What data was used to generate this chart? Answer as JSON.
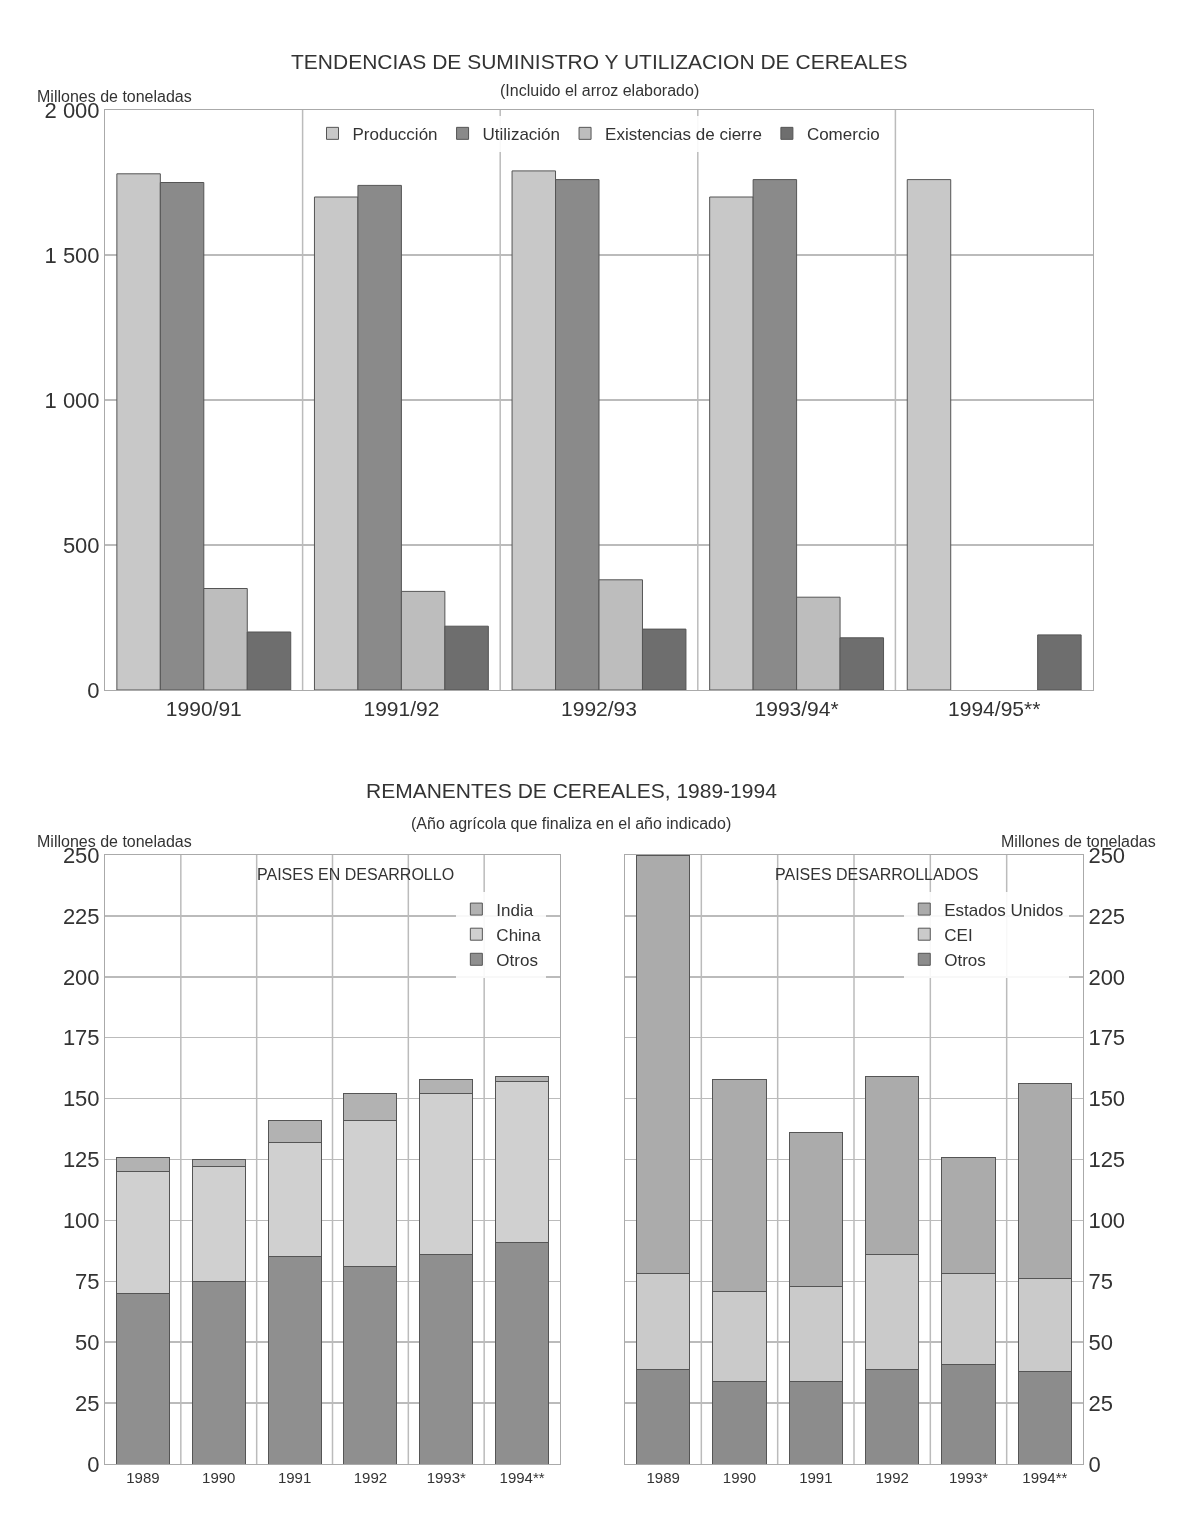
{
  "chart_data": [
    {
      "type": "bar",
      "title": "TENDENCIAS DE SUMINISTRO Y UTILIZACION DE CEREALES",
      "subtitle": "(Incluido el arroz elaborado)",
      "ylabel": "Millones de toneladas",
      "categories": [
        "1990/91",
        "1991/92",
        "1992/93",
        "1993/94*",
        "1994/95**"
      ],
      "series": [
        {
          "name": "Producción",
          "color": "#c8c8c8",
          "values": [
            1780,
            1700,
            1790,
            1700,
            1760
          ]
        },
        {
          "name": "Utilización",
          "color": "#8a8a8a",
          "values": [
            1750,
            1740,
            1760,
            1760,
            null
          ]
        },
        {
          "name": "Existencias de cierre",
          "color": "#bdbdbd",
          "values": [
            350,
            340,
            380,
            320,
            null
          ]
        },
        {
          "name": "Comercio",
          "color": "#6e6e6e",
          "values": [
            200,
            220,
            210,
            180,
            190
          ]
        }
      ],
      "ylim": [
        0,
        2000
      ],
      "yticks": [
        0,
        {
          "value": 500,
          "label": "500"
        },
        {
          "value": 1000,
          "label": "1 000"
        },
        {
          "value": 1500,
          "label": "1 500"
        },
        {
          "value": 2000,
          "label": "2 000"
        }
      ],
      "grid": true,
      "legend": "top"
    },
    {
      "type": "bar",
      "title": "REMANENTES DE CEREALES, 1989-1994",
      "subtitle": "(Año agrícola que finaliza en el año indicado)",
      "ylabel": "Millones de toneladas",
      "annotations": [
        "PAISES EN DESARROLLO"
      ],
      "categories": [
        "1989",
        "1990",
        "1991",
        "1992",
        "1993*",
        "1994**"
      ],
      "stacked": true,
      "series": [
        {
          "name": "Otros",
          "color": "#8f8f8f",
          "values": [
            70,
            75,
            85,
            81,
            86,
            91
          ]
        },
        {
          "name": "China",
          "color": "#d0d0d0",
          "values": [
            50,
            47,
            47,
            60,
            66,
            66
          ]
        },
        {
          "name": "India",
          "color": "#b2b2b2",
          "values": [
            6,
            3,
            9,
            11,
            6,
            2
          ]
        }
      ],
      "ylim": [
        0,
        250
      ],
      "yticks": [
        0,
        25,
        50,
        75,
        100,
        125,
        150,
        175,
        200,
        225,
        250
      ],
      "grid": true,
      "legend": "top right"
    },
    {
      "type": "bar",
      "y2label": "Millones de toneladas",
      "annotations": [
        "PAISES DESARROLLADOS"
      ],
      "categories": [
        "1989",
        "1990",
        "1991",
        "1992",
        "1993*",
        "1994**"
      ],
      "stacked": true,
      "series": [
        {
          "name": "Otros",
          "color": "#8c8c8c",
          "axis": "y2",
          "values": [
            39,
            34,
            34,
            39,
            41,
            38
          ]
        },
        {
          "name": "CEI",
          "color": "#cacaca",
          "axis": "y2",
          "values": [
            39,
            37,
            39,
            47,
            37,
            38
          ]
        },
        {
          "name": "Estados Unidos",
          "color": "#ababab",
          "axis": "y2",
          "values": [
            172,
            87,
            63,
            73,
            48,
            80
          ]
        }
      ],
      "y2lim": [
        0,
        250
      ],
      "y2ticks": [
        0,
        25,
        50,
        75,
        100,
        125,
        150,
        175,
        200,
        225,
        250
      ],
      "grid": true,
      "legend": "top right"
    }
  ]
}
